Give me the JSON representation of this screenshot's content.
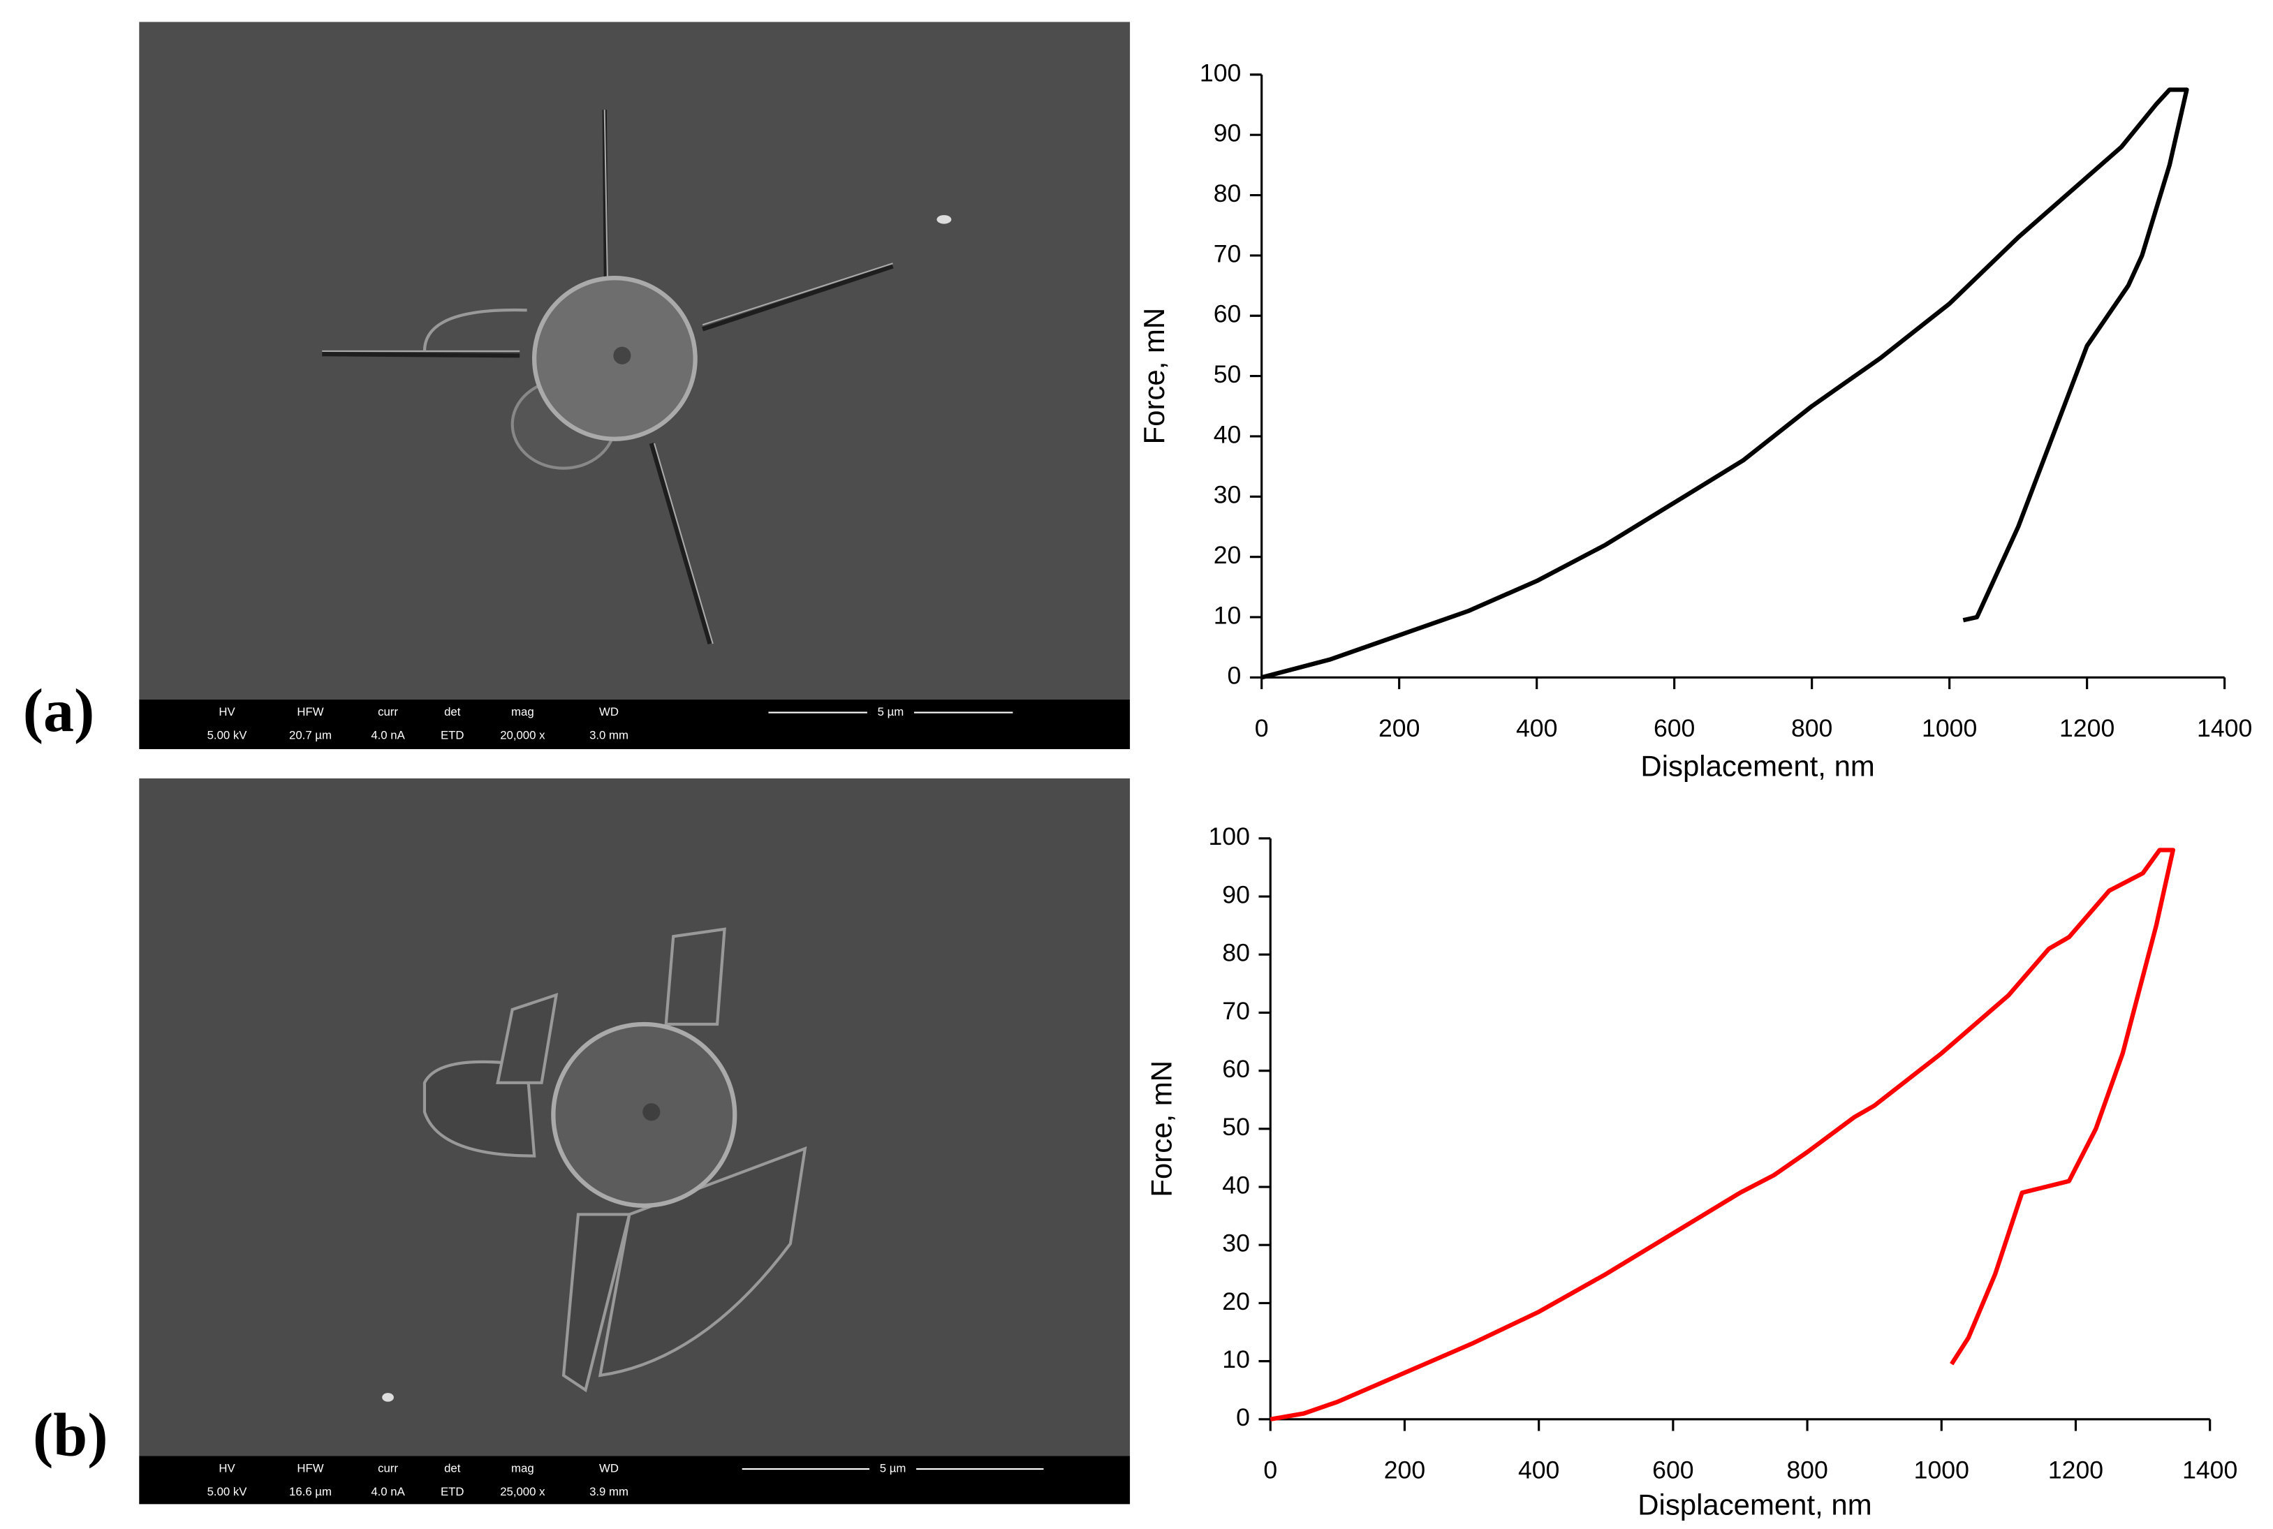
{
  "panels": [
    {
      "label": "(a)",
      "sem": {
        "fields": [
          [
            "HV",
            "5.00 kV"
          ],
          [
            "HFW",
            "20.7 µm"
          ],
          [
            "curr",
            "4.0 nA"
          ],
          [
            "det",
            "ETD"
          ],
          [
            "mag",
            "20,000 x"
          ],
          [
            "WD",
            "3.0 mm"
          ]
        ],
        "scale": "5 µm"
      }
    },
    {
      "label": "(b)",
      "sem": {
        "fields": [
          [
            "HV",
            "5.00 kV"
          ],
          [
            "HFW",
            "16.6 µm"
          ],
          [
            "curr",
            "4.0 nA"
          ],
          [
            "det",
            "ETD"
          ],
          [
            "mag",
            "25,000 x"
          ],
          [
            "WD",
            "3.9 mm"
          ]
        ],
        "scale": "5 µm"
      }
    }
  ],
  "chart_data": [
    {
      "type": "line",
      "x_label": "Displacement, nm",
      "y_label": "Force, mN",
      "color": "#000000",
      "x": [
        0,
        100,
        150,
        200,
        300,
        400,
        500,
        600,
        700,
        800,
        850,
        900,
        1000,
        1100,
        1200,
        1250,
        1300,
        1320,
        1345,
        1320,
        1280,
        1260,
        1230,
        1200,
        1150,
        1100,
        1060,
        1040,
        1020
      ],
      "values": [
        0,
        3,
        5,
        7,
        11,
        16,
        22,
        29,
        36,
        45,
        49,
        53,
        62,
        73,
        83,
        88,
        95,
        97.5,
        97.5,
        85,
        70,
        65,
        60,
        55,
        40,
        25,
        15,
        10,
        9.5
      ],
      "xlim": [
        0,
        1400
      ],
      "xticks": [
        0,
        200,
        400,
        600,
        800,
        1000,
        1200,
        1400
      ],
      "ylim": [
        0,
        100
      ],
      "yticks": [
        0,
        10,
        20,
        30,
        40,
        50,
        60,
        70,
        80,
        90,
        100
      ]
    },
    {
      "type": "line",
      "x_label": "Displacement, nm",
      "y_label": "Force, mN",
      "color": "#ff0000",
      "x": [
        0,
        50,
        100,
        200,
        300,
        400,
        500,
        600,
        700,
        750,
        800,
        870,
        900,
        1000,
        1100,
        1160,
        1190,
        1250,
        1300,
        1325,
        1345,
        1320,
        1270,
        1230,
        1190,
        1120,
        1080,
        1040,
        1015
      ],
      "values": [
        0,
        1,
        3,
        8,
        13,
        18.5,
        25,
        32,
        39,
        42,
        46,
        52,
        54,
        63,
        73,
        81,
        83,
        91,
        94,
        98,
        98,
        85,
        63,
        50,
        41,
        39,
        25,
        14,
        9.5
      ],
      "xlim": [
        0,
        1400
      ],
      "xticks": [
        0,
        200,
        400,
        600,
        800,
        1000,
        1200,
        1400
      ],
      "ylim": [
        0,
        100
      ],
      "yticks": [
        0,
        10,
        20,
        30,
        40,
        50,
        60,
        70,
        80,
        90,
        100
      ]
    }
  ]
}
